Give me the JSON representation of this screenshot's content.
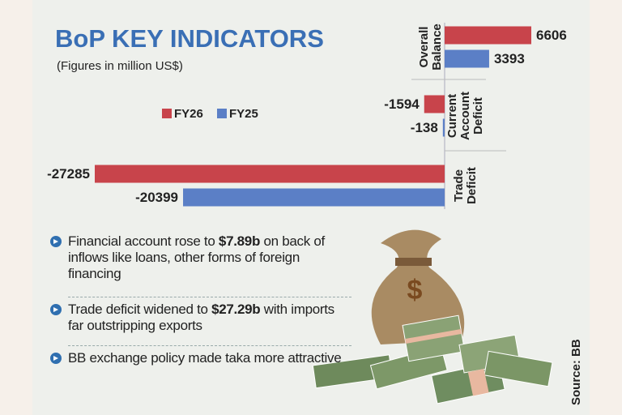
{
  "chart_data": {
    "type": "bar",
    "orientation": "horizontal",
    "title": "BoP KEY INDICATORS",
    "subtitle": "(Figures in million US$)",
    "categories": [
      "Overall Balance",
      "Current Account Deficit",
      "Trade Deficit"
    ],
    "series": [
      {
        "name": "FY26",
        "color": "#c8444b",
        "values": [
          6606,
          -1594,
          -27285
        ]
      },
      {
        "name": "FY25",
        "color": "#5b7fc6",
        "values": [
          3393,
          -138,
          -20399
        ]
      }
    ]
  },
  "bullets": [
    [
      "Financial account rose to ",
      "$7.89b",
      " on back of inflows like loans, other forms of foreign financing"
    ],
    [
      "Trade deficit widened to ",
      "$27.29b",
      " with imports far outstripping exports"
    ],
    [
      "BB exchange policy made taka more attractive"
    ]
  ],
  "source": "Source: BB"
}
